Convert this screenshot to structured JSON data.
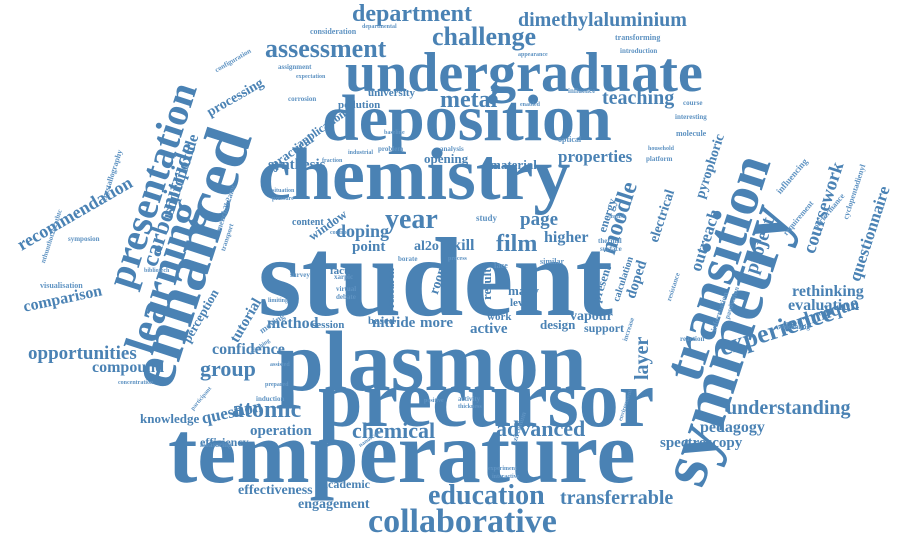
{
  "words": {
    "student": "student",
    "temperature": "temperature",
    "plasmon": "plasmon",
    "precursor": "precursor",
    "deposition": "deposition",
    "chemistry": "chemistry",
    "symmetry": "symmetry",
    "transition": "transition",
    "enhanced": "enhanced",
    "learning": "learning",
    "presentation": "presentation",
    "undergraduate": "undergraduate",
    "collaborative": "collaborative",
    "education": "education",
    "assessment": "assessment",
    "challenge": "challenge",
    "department": "department",
    "dimethylaluminium": "dimethylaluminium",
    "experience": "experience",
    "understanding": "understanding",
    "opportunities": "opportunities",
    "atomic": "atomic",
    "group": "group",
    "chemical": "chemical",
    "advanced": "advanced",
    "transferrable": "transferrable",
    "year": "year",
    "moodle": "moodle",
    "metal": "metal",
    "teaching": "teaching",
    "coursework": "coursework",
    "questionnaire": "questionnaire",
    "recommendation": "recommendation",
    "carbonitride": "carbonitride",
    "isopropoxide": "isopropoxide",
    "processing": "processing",
    "project": "project",
    "outreach": "outreach",
    "layer": "layer",
    "film": "film",
    "page": "page",
    "doping": "doping",
    "properties": "properties",
    "technique": "technique",
    "evaluation": "evaluation",
    "rethinking": "rethinking",
    "pedagogy": "pedagogy",
    "spectroscopy": "spectroscopy",
    "symposium": "symposium",
    "operation": "operation",
    "effectiveness": "effectiveness",
    "engagement": "engagement",
    "compound": "compound",
    "comparison": "comparison",
    "question": "question",
    "confidence": "confidence",
    "method": "method",
    "knowledge": "knowledge",
    "efficiency": "efficiency",
    "tutorial": "tutorial",
    "perception": "perception",
    "nitride": "nitride",
    "more": "more",
    "active": "active",
    "design": "design",
    "vapour": "vapour",
    "support": "support",
    "synthesis": "synthesis",
    "opening": "opening",
    "material": "material",
    "practical": "practical",
    "application": "application",
    "pollution": "pollution",
    "university": "university",
    "higher": "higher",
    "electrical": "electrical",
    "doped": "doped",
    "pyrophoric": "pyrophoric",
    "academic": "academic",
    "session": "session",
    "point": "point",
    "skill": "skill",
    "result": "result",
    "room": "room",
    "many": "many",
    "level": "level",
    "work": "work",
    "research": "research",
    "based": "based",
    "factor": "factor",
    "al2o": "al2o",
    "present": "present",
    "energy": "energy",
    "calculation": "calculation",
    "window": "window",
    "content": "content",
    "visualisation": "visualisation",
    "nthunthot2h2athtc": "nthunthot2h2athtc",
    "crystallography": "crystallography",
    "mench2h2amc": "mench2h2amc",
    "cyclopentadienyl": "cyclopentadienyl",
    "consideration": "consideration",
    "transforming": "transforming",
    "introduction": "introduction",
    "appearance": "appearance",
    "influencing": "influencing",
    "requirement": "requirement",
    "performance": "performance",
    "welcoming": "welcoming",
    "interesting": "interesting",
    "molecule": "molecule",
    "influence": "influence",
    "enabled": "enabled",
    "course": "course",
    "corrosion": "corrosion",
    "expectation": "expectation",
    "configuration": "configuration",
    "assignment": "assignment",
    "departmental": "departmental",
    "industrial": "industrial",
    "problem": "problem",
    "analysis": "analysis",
    "optical": "optical",
    "baseline": "baseline",
    "fraction": "fraction",
    "situation": "situation",
    "pressure": "pressure",
    "transport": "transport",
    "bibliotech": "bibliotech",
    "symposion": "symposion",
    "survey": "survey",
    "virtual": "virtual",
    "debate": "debate",
    "moving": "moving",
    "limiting": "limiting",
    "prepared": "prepared",
    "induction": "induction",
    "participant": "participant",
    "measuring": "measuring",
    "nanoscale": "nanoscale",
    "activity": "activity",
    "thickness": "thickness",
    "zirconium": "zirconium",
    "positive": "positive",
    "experiment": "experiment",
    "interactive": "interactive",
    "environment": "environment",
    "increase": "increase",
    "reaction": "reaction",
    "resistance": "resistance",
    "information": "information",
    "passivation": "passivation",
    "english": "english",
    "platform": "platform",
    "household": "household",
    "study": "study",
    "face": "face",
    "similar": "similar",
    "thermal": "thermal",
    "surface": "surface",
    "control": "control",
    "switching": "switching",
    "assisted": "assisted",
    "concentration": "concentration",
    "xarpic": "xarpic",
    "borate": "borate",
    "process": "process"
  }
}
